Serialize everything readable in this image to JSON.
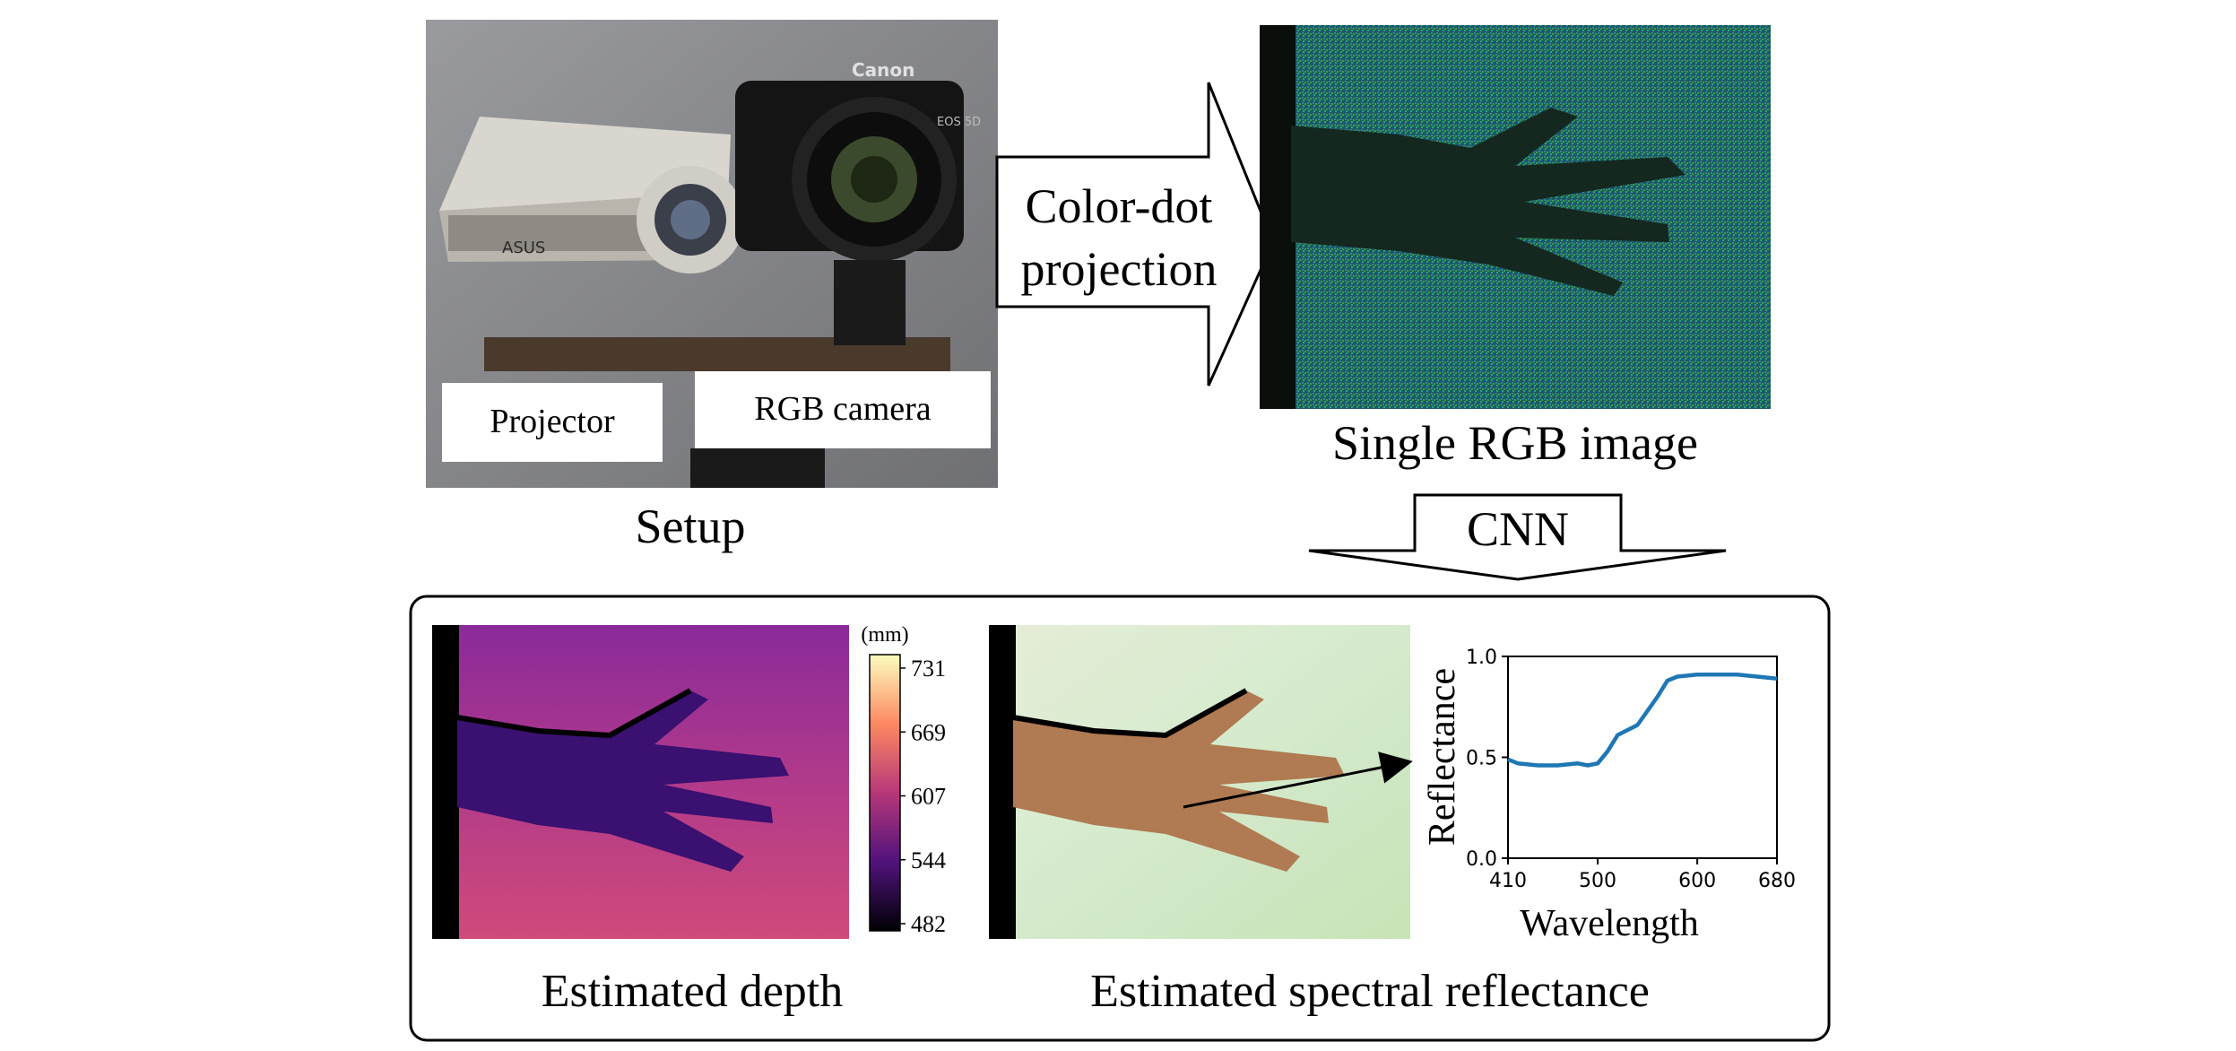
{
  "setup": {
    "caption": "Setup",
    "projector_label": "Projector",
    "camera_label": "RGB camera",
    "projector_logo": "ASUS",
    "camera_brand": "Canon",
    "camera_model": "EOS 5D"
  },
  "projection_arrow": {
    "line1": "Color-dot",
    "line2": "projection"
  },
  "rgb_image": {
    "caption": "Single RGB image"
  },
  "cnn_arrow": {
    "label": "CNN"
  },
  "depth": {
    "caption": "Estimated depth",
    "colorbar": {
      "unit": "(mm)",
      "ticks": [
        "731",
        "669",
        "607",
        "544",
        "482"
      ],
      "colors": [
        "#fcfdbf",
        "#fc8961",
        "#b73779",
        "#51127c",
        "#000004"
      ]
    }
  },
  "reflectance_map": {
    "caption": "Estimated spectral reflectance"
  },
  "chart_data": {
    "type": "line",
    "xlabel": "Wavelength",
    "ylabel": "Reflectance",
    "xlim": [
      410,
      680
    ],
    "ylim": [
      0.0,
      1.0
    ],
    "xticks": [
      410,
      500,
      600,
      680
    ],
    "yticks": [
      0.0,
      0.5,
      1.0
    ],
    "x_tick_labels": [
      "410",
      "500",
      "600",
      "680"
    ],
    "y_tick_labels": [
      "0.0",
      "0.5",
      "1.0"
    ],
    "line_color": "#1f77b4",
    "x": [
      410,
      420,
      440,
      460,
      480,
      490,
      500,
      510,
      520,
      540,
      560,
      570,
      580,
      600,
      620,
      640,
      660,
      680
    ],
    "y": [
      0.49,
      0.47,
      0.46,
      0.46,
      0.47,
      0.46,
      0.47,
      0.53,
      0.61,
      0.66,
      0.8,
      0.88,
      0.9,
      0.91,
      0.91,
      0.91,
      0.9,
      0.89
    ]
  }
}
